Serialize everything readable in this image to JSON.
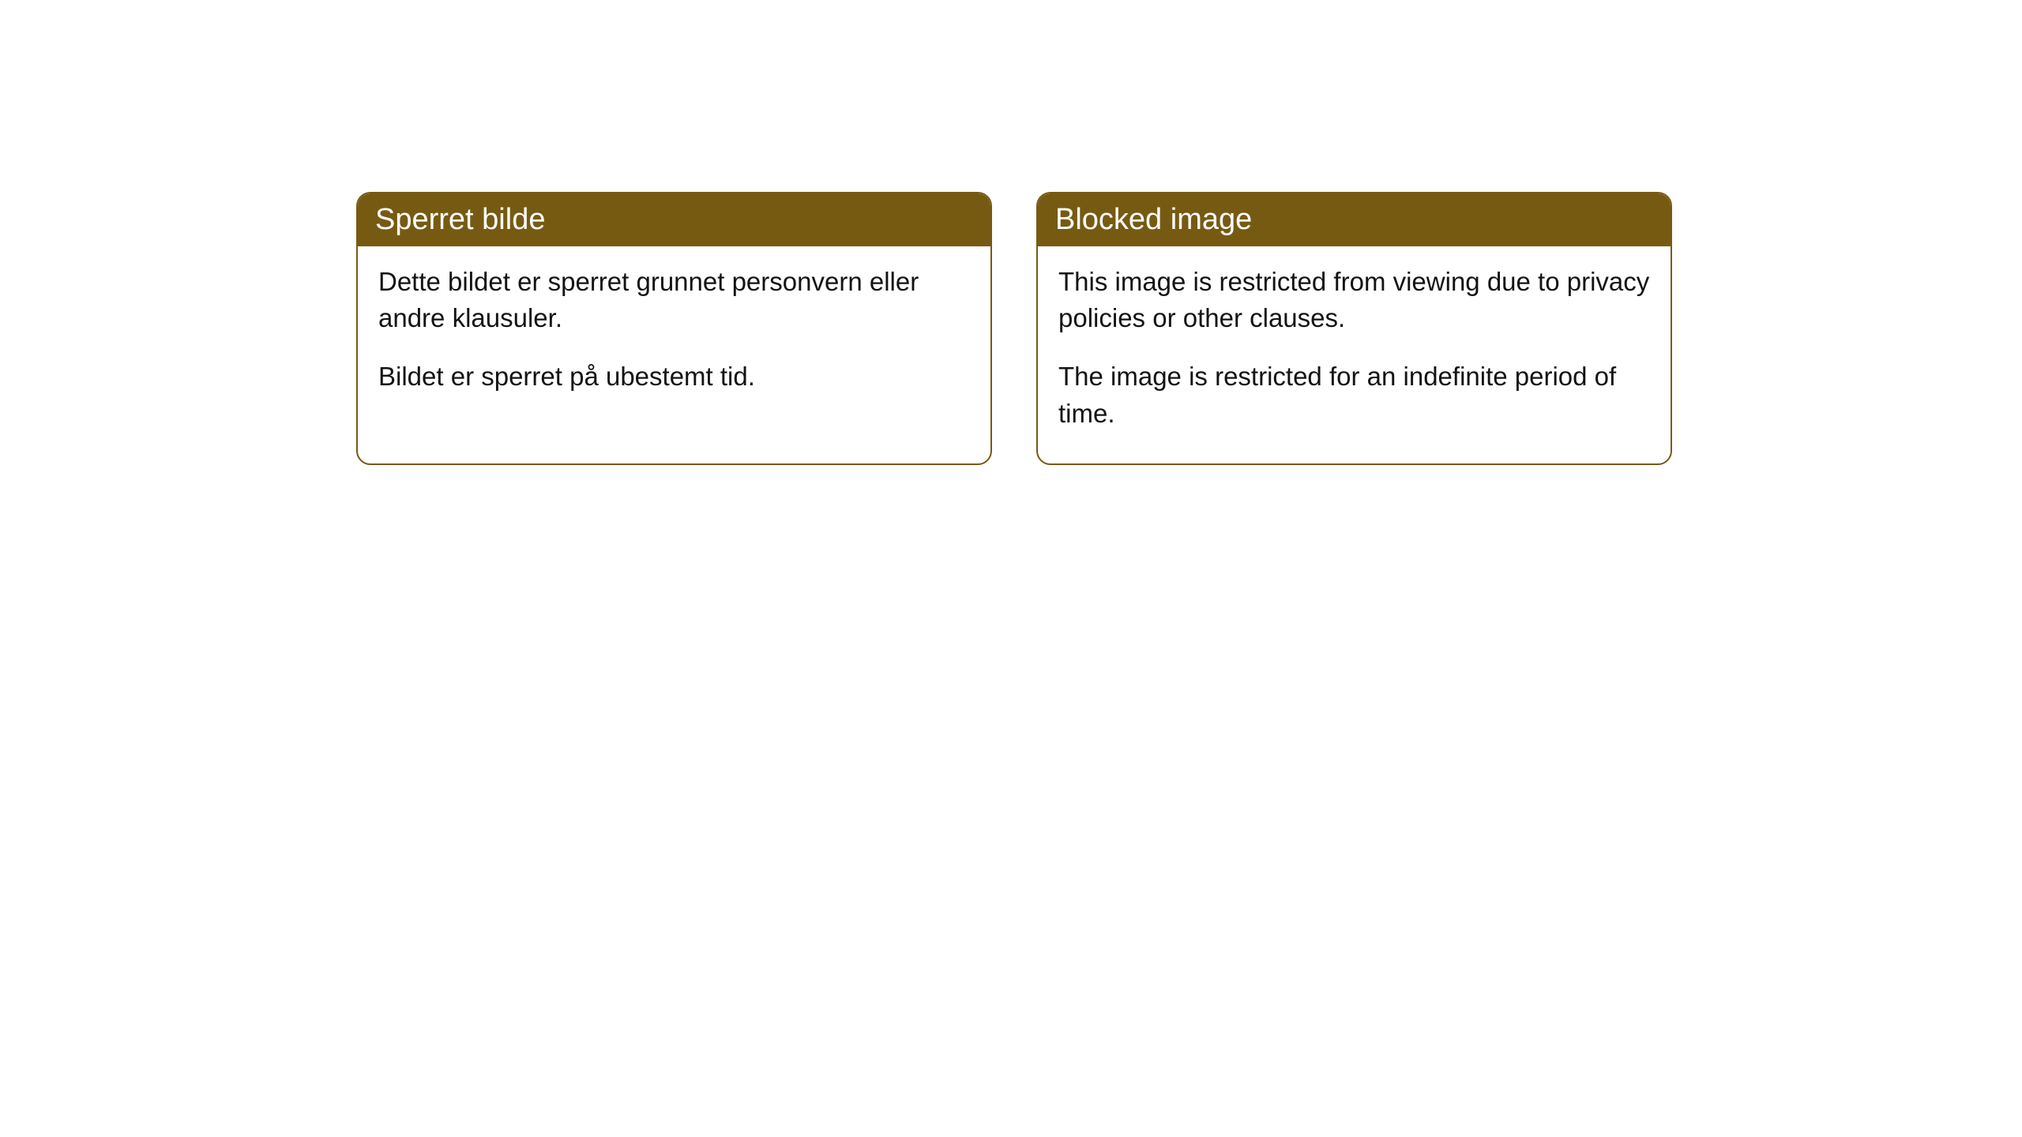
{
  "cards": [
    {
      "title": "Sperret bilde",
      "paragraph1": "Dette bildet er sperret grunnet personvern eller andre klausuler.",
      "paragraph2": "Bildet er sperret på ubestemt tid."
    },
    {
      "title": "Blocked image",
      "paragraph1": "This image is restricted from viewing due to privacy policies or other clauses.",
      "paragraph2": "The image is restricted for an indefinite period of time."
    }
  ],
  "styling": {
    "header_background": "#775a12",
    "header_text_color": "#ffffff",
    "border_color": "#775a12",
    "body_text_color": "#131313",
    "card_background": "#ffffff",
    "border_radius": 18,
    "header_fontsize": 38,
    "body_fontsize": 33
  }
}
